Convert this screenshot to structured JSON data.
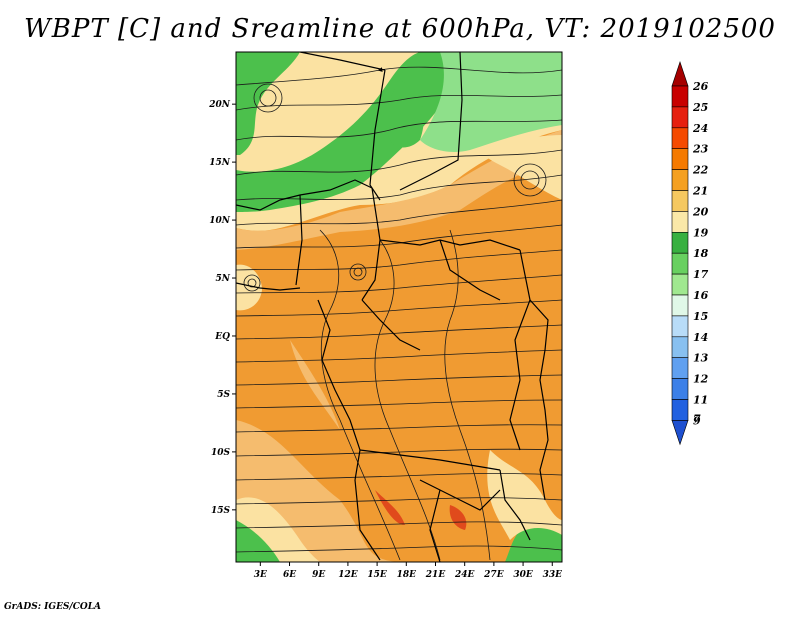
{
  "title": "WBPT [C] and Sreamline at 600hPa, VT: 2019102500",
  "credit": "GrADS: IGES/COLA",
  "map": {
    "lat_labels": [
      "20N",
      "15N",
      "10N",
      "5N",
      "EQ",
      "5S",
      "10S",
      "15S"
    ],
    "lat_values": [
      20,
      15,
      10,
      5,
      0,
      -5,
      -10,
      -15
    ],
    "lon_labels": [
      "3E",
      "6E",
      "9E",
      "12E",
      "15E",
      "18E",
      "21E",
      "24E",
      "27E",
      "30E",
      "33E"
    ],
    "lon_values": [
      3,
      6,
      9,
      12,
      15,
      18,
      21,
      24,
      27,
      30,
      33
    ],
    "lat_range": [
      -19.5,
      24.5
    ],
    "lon_range": [
      0.5,
      34
    ]
  },
  "colorbar": {
    "labels": [
      "26",
      "25",
      "24",
      "23",
      "22",
      "21",
      "20",
      "19",
      "18",
      "17",
      "16",
      "15",
      "14",
      "13",
      "12",
      "11",
      "9",
      "7"
    ],
    "colors": [
      "#a50000",
      "#c80000",
      "#e62010",
      "#f54a00",
      "#f57a00",
      "#f5a020",
      "#f5c860",
      "#fae8a8",
      "#38b040",
      "#68d060",
      "#a0e890",
      "#e0f8e8",
      "#b8dcf8",
      "#88c0f0",
      "#60a0f0",
      "#3c80e8",
      "#2060e0",
      "#1e50d0"
    ]
  },
  "legend_colors": {
    "orange": "#f09b32",
    "light_orange": "#f5bc6e",
    "yellow": "#fbe2a2",
    "green": "#4cc04c",
    "light_green": "#8ee08a",
    "red": "#e04a1c"
  }
}
